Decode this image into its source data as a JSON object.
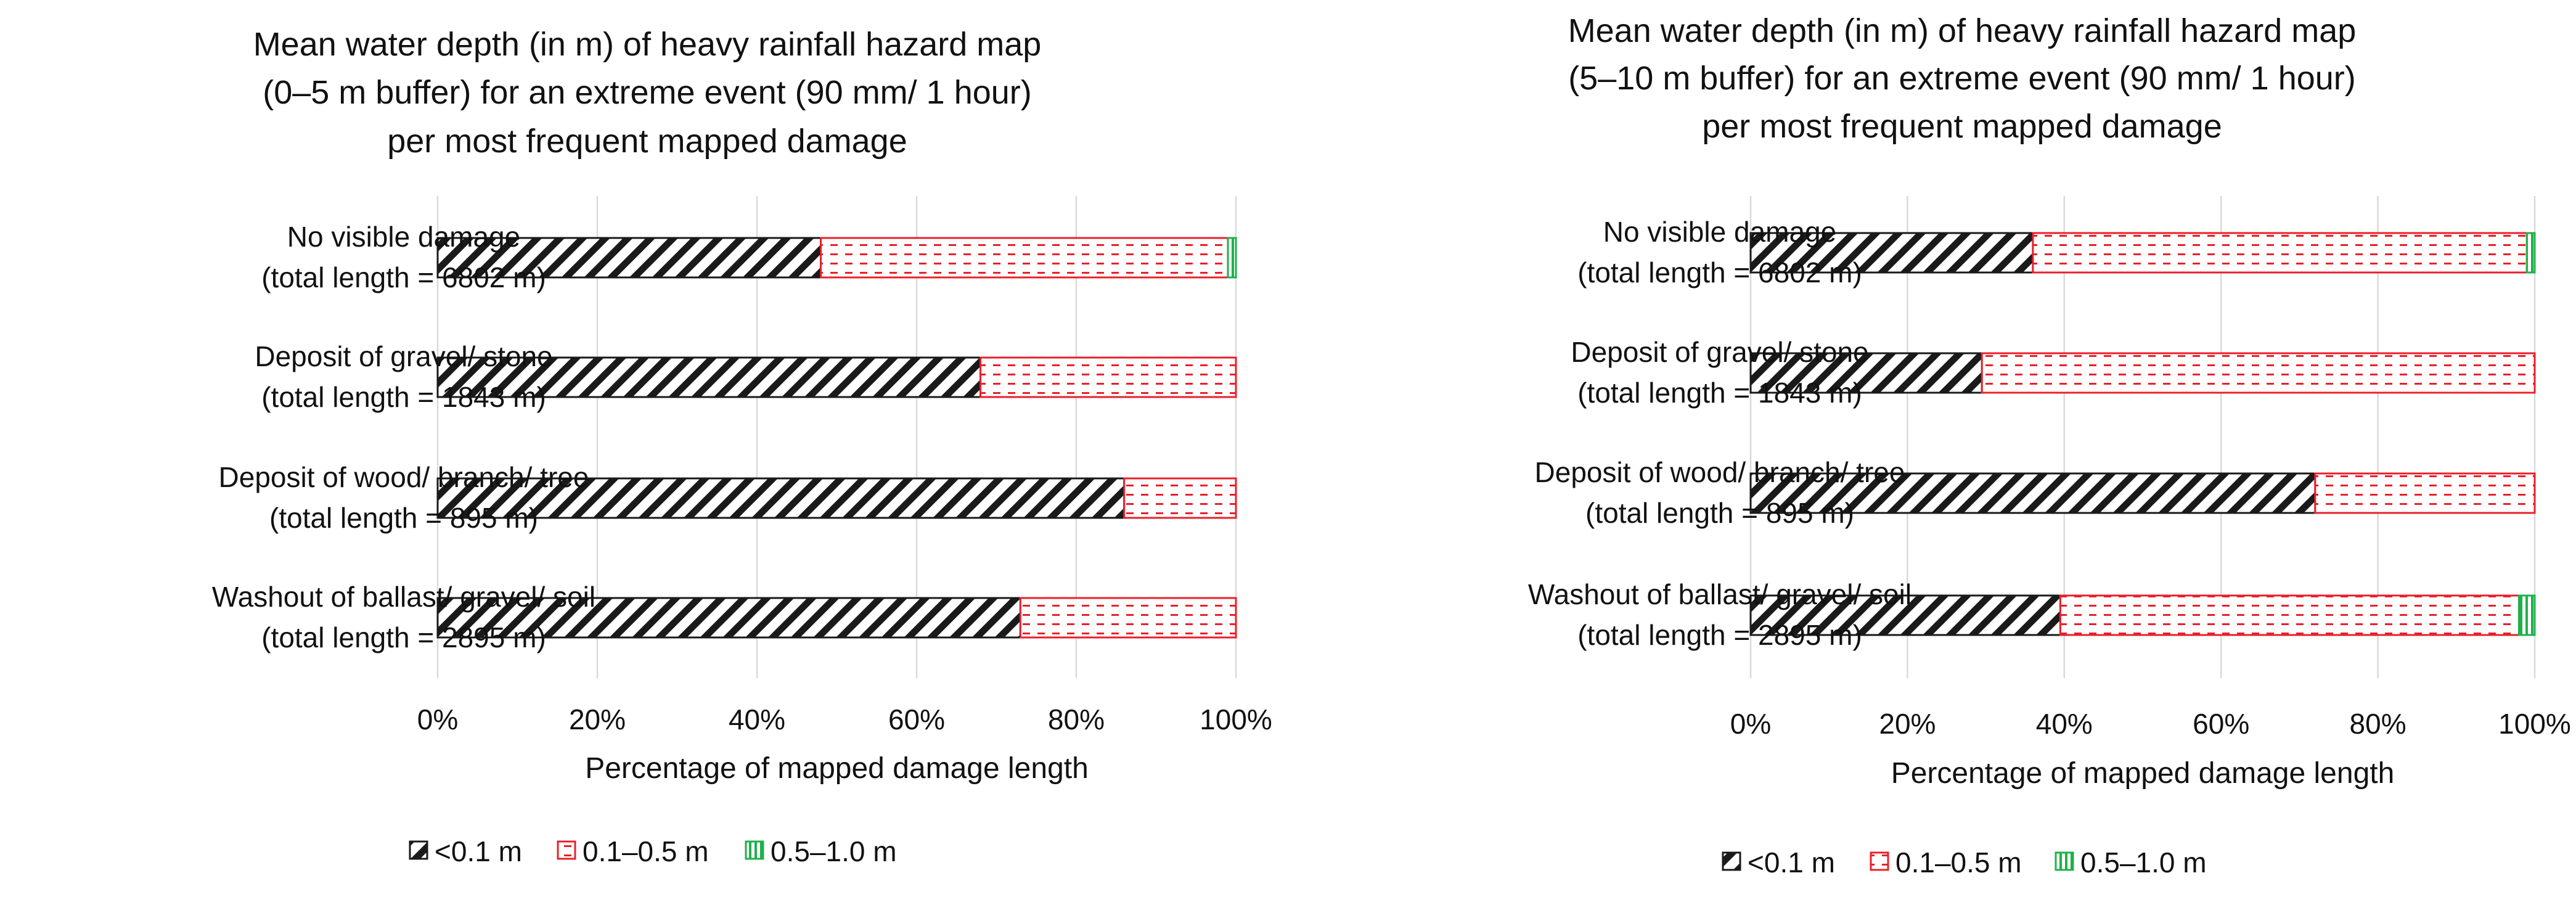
{
  "chart_data": [
    {
      "type": "bar",
      "orientation": "horizontal",
      "stacked": "percent",
      "title": [
        "Mean water depth (in m) of heavy rainfall hazard map",
        "(0–5 m buffer) for an extreme event (90 mm/ 1 hour)",
        "per most frequent mapped damage"
      ],
      "categories": [
        [
          "No visible damage",
          "(total length = 6802 m)"
        ],
        [
          "Deposit of gravel/ stone",
          "(total length = 1843 m)"
        ],
        [
          "Deposit of wood/ branch/ tree",
          "(total length = 895 m)"
        ],
        [
          "Washout of ballast/ gravel/ soil",
          "(total length = 2895 m)"
        ]
      ],
      "series": [
        {
          "name": "<0.1 m",
          "values": [
            48,
            68,
            86,
            73
          ]
        },
        {
          "name": "0.1–0.5 m",
          "values": [
            51,
            32,
            14,
            27
          ]
        },
        {
          "name": "0.5–1.0 m",
          "values": [
            1,
            0,
            0,
            0
          ]
        }
      ],
      "xlabel": "Percentage of mapped damage length",
      "ylabel": "",
      "xlim": [
        0,
        100
      ],
      "xticks": [
        "0%",
        "20%",
        "40%",
        "60%",
        "80%",
        "100%"
      ],
      "grid": true,
      "legend_position": "bottom-left"
    },
    {
      "type": "bar",
      "orientation": "horizontal",
      "stacked": "percent",
      "title": [
        "Mean water depth (in m) of heavy rainfall hazard map",
        "(5–10 m buffer) for an extreme event (90 mm/ 1 hour)",
        "per most frequent mapped damage"
      ],
      "categories": [
        [
          "No visible damage",
          "(total length = 6802 m)"
        ],
        [
          "Deposit of gravel/ stone",
          "(total length = 1843 m)"
        ],
        [
          "Deposit of wood/ branch/ tree",
          "(total length = 895 m)"
        ],
        [
          "Washout of ballast/ gravel/ soil",
          "(total length = 2895 m)"
        ]
      ],
      "series": [
        {
          "name": "<0.1 m",
          "values": [
            36,
            29.5,
            72,
            39.5
          ]
        },
        {
          "name": "0.1–0.5 m",
          "values": [
            63,
            70.5,
            28,
            58.5
          ]
        },
        {
          "name": "0.5–1.0 m",
          "values": [
            1,
            0,
            0,
            2
          ]
        }
      ],
      "xlabel": "Percentage of mapped damage length",
      "ylabel": "",
      "xlim": [
        0,
        100
      ],
      "xticks": [
        "0%",
        "20%",
        "40%",
        "60%",
        "80%",
        "100%"
      ],
      "grid": true,
      "legend_position": "bottom-left"
    }
  ],
  "colors": {
    "series": [
      "#1a1a1a",
      "#e8202a",
      "#1fb14a"
    ],
    "grid": "#d9d9d9",
    "text": "#111111"
  }
}
